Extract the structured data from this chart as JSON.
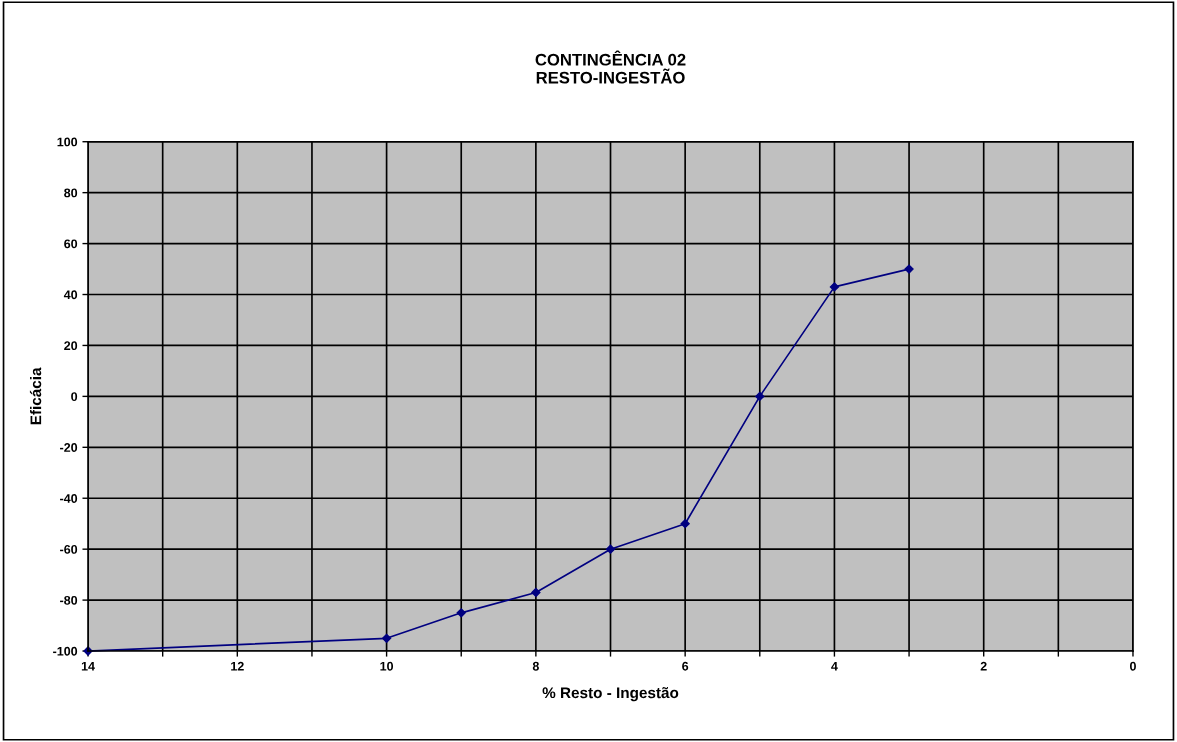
{
  "chart_data": {
    "type": "line",
    "title": "CONTINGÊNCIA 02\nRESTO-INGESTÃO",
    "xlabel": "% Resto - Ingestão",
    "ylabel": "Eficácia",
    "x": [
      14,
      10,
      9,
      8,
      7,
      6,
      5,
      4,
      3
    ],
    "series": [
      {
        "color": "#000080",
        "values": [
          -100,
          -95,
          -85,
          -77,
          -60,
          -50,
          0,
          43,
          50
        ]
      }
    ],
    "xlim": [
      14,
      0
    ],
    "xticks": [
      14,
      {
        "value": 13,
        "label": null
      },
      12,
      {
        "value": 11,
        "label": null
      },
      10,
      {
        "value": 9,
        "label": null
      },
      8,
      {
        "value": 7,
        "label": null
      },
      6,
      {
        "value": 5,
        "label": null
      },
      4,
      {
        "value": 3,
        "label": null
      },
      2,
      {
        "value": 1,
        "label": null
      },
      0
    ],
    "ylim": [
      -100,
      100
    ],
    "yticks": [
      -100,
      -80,
      -60,
      -40,
      -20,
      0,
      20,
      40,
      60,
      80,
      100
    ],
    "grid": true,
    "marker": "diamond",
    "line_style": "solid",
    "legend": false
  }
}
